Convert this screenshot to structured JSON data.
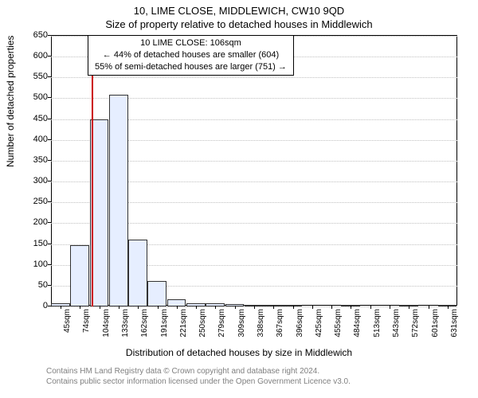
{
  "header": {
    "address": "10, LIME CLOSE, MIDDLEWICH, CW10 9QD",
    "subtitle": "Size of property relative to detached houses in Middlewich"
  },
  "info_box": {
    "line1": "10 LIME CLOSE: 106sqm",
    "line2": "← 44% of detached houses are smaller (604)",
    "line3": "55% of semi-detached houses are larger (751) →"
  },
  "axes": {
    "ylabel": "Number of detached properties",
    "xlabel": "Distribution of detached houses by size in Middlewich",
    "ylim": [
      0,
      650
    ],
    "ytick_step": 50,
    "yticks": [
      0,
      50,
      100,
      150,
      200,
      250,
      300,
      350,
      400,
      450,
      500,
      550,
      600,
      650
    ]
  },
  "chart": {
    "type": "histogram",
    "bar_fill": "#e6eeff",
    "bar_border": "#333333",
    "grid_color": "#c0c0c0",
    "background_color": "#ffffff",
    "marker_color": "#cc0000",
    "marker_x_value": 106,
    "x_start": 45,
    "x_bin_width": 29.3,
    "x_labels": [
      "45sqm",
      "74sqm",
      "104sqm",
      "133sqm",
      "162sqm",
      "191sqm",
      "221sqm",
      "250sqm",
      "279sqm",
      "309sqm",
      "338sqm",
      "367sqm",
      "396sqm",
      "425sqm",
      "455sqm",
      "484sqm",
      "513sqm",
      "543sqm",
      "572sqm",
      "601sqm",
      "631sqm"
    ],
    "values": [
      7,
      148,
      449,
      509,
      160,
      62,
      18,
      8,
      8,
      5,
      3,
      2,
      3,
      0,
      0,
      3,
      0,
      0,
      2,
      0,
      3
    ]
  },
  "footer": {
    "line1": "Contains HM Land Registry data © Crown copyright and database right 2024.",
    "line2": "Contains public sector information licensed under the Open Government Licence v3.0."
  }
}
